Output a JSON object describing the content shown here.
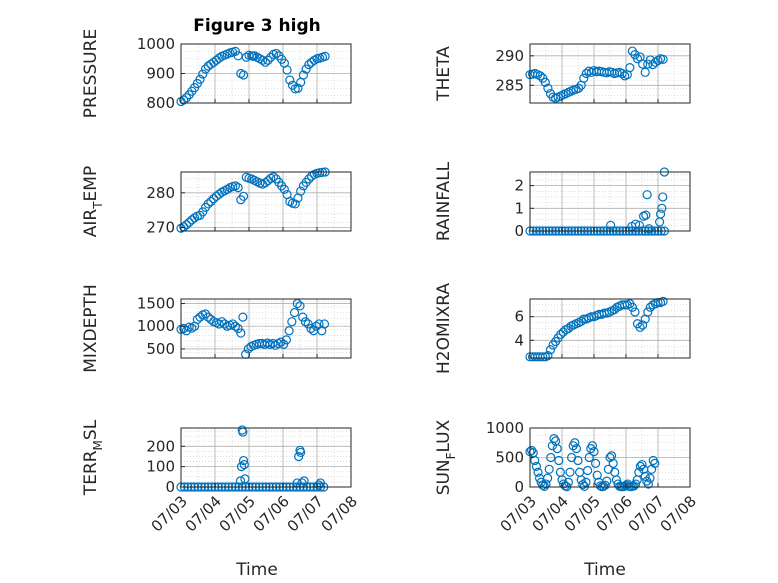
{
  "figure": {
    "title": "Figure 3 high",
    "xlabel": "Time",
    "marker_color": "#0072BD",
    "grid_color": "#c8c8c8",
    "axis_color": "#262626"
  },
  "chart_data": [
    {
      "type": "scatter",
      "ylabel": "PRESSURE",
      "title": "Figure 3 high",
      "xlim": [
        0,
        5
      ],
      "ylim": [
        800,
        1000
      ],
      "yticks": [
        800,
        900,
        1000
      ],
      "xtick_labels": [],
      "x": [
        0.0,
        0.08,
        0.16,
        0.24,
        0.32,
        0.4,
        0.48,
        0.56,
        0.64,
        0.72,
        0.8,
        0.88,
        0.96,
        1.04,
        1.12,
        1.2,
        1.28,
        1.36,
        1.44,
        1.52,
        1.6,
        1.68,
        1.76,
        1.84,
        1.92,
        2.0,
        2.08,
        2.12,
        2.16,
        2.24,
        2.32,
        2.4,
        2.48,
        2.56,
        2.64,
        2.72,
        2.8,
        2.88,
        2.96,
        3.04,
        3.12,
        3.2,
        3.28,
        3.36,
        3.44,
        3.52,
        3.6,
        3.68,
        3.76,
        3.84,
        3.92,
        4.0,
        4.08,
        4.16,
        4.24
      ],
      "y": [
        805,
        810,
        818,
        828,
        840,
        852,
        866,
        880,
        898,
        915,
        925,
        932,
        938,
        945,
        952,
        958,
        962,
        966,
        970,
        972,
        975,
        960,
        900,
        895,
        955,
        962,
        960,
        958,
        960,
        955,
        950,
        945,
        938,
        945,
        955,
        965,
        968,
        960,
        948,
        935,
        912,
        878,
        860,
        848,
        850,
        870,
        895,
        915,
        930,
        938,
        945,
        950,
        952,
        955,
        958
      ]
    },
    {
      "type": "scatter",
      "ylabel": "THETA",
      "xlim": [
        0,
        5
      ],
      "ylim": [
        282,
        292
      ],
      "yticks": [
        285,
        290
      ],
      "xtick_labels": [],
      "x": [
        0.0,
        0.08,
        0.16,
        0.24,
        0.32,
        0.4,
        0.48,
        0.56,
        0.64,
        0.72,
        0.8,
        0.88,
        0.96,
        1.04,
        1.12,
        1.2,
        1.28,
        1.36,
        1.44,
        1.52,
        1.6,
        1.68,
        1.76,
        1.84,
        1.92,
        2.0,
        2.08,
        2.16,
        2.24,
        2.32,
        2.4,
        2.48,
        2.56,
        2.64,
        2.72,
        2.8,
        2.88,
        2.96,
        3.04,
        3.12,
        3.2,
        3.28,
        3.36,
        3.44,
        3.52,
        3.6,
        3.68,
        3.76,
        3.84,
        3.92,
        4.0,
        4.08,
        4.16
      ],
      "y": [
        286.8,
        286.9,
        287.0,
        286.8,
        286.6,
        286.2,
        285.5,
        284.5,
        283.6,
        283.0,
        282.8,
        283.0,
        283.2,
        283.4,
        283.6,
        283.8,
        284.0,
        284.2,
        284.3,
        284.5,
        285.0,
        286.2,
        287.0,
        287.4,
        287.2,
        287.5,
        287.3,
        287.4,
        287.3,
        287.2,
        287.1,
        287.3,
        287.2,
        287.0,
        287.1,
        287.2,
        287.0,
        286.6,
        286.8,
        288.0,
        290.8,
        290.2,
        289.5,
        289.8,
        288.6,
        287.2,
        288.6,
        289.3,
        288.5,
        288.9,
        289.2,
        289.5,
        289.4
      ]
    },
    {
      "type": "scatter",
      "ylabel": "AIR_TEMP",
      "xlim": [
        0,
        5
      ],
      "ylim": [
        269,
        286
      ],
      "yticks": [
        270,
        280
      ],
      "xtick_labels": [],
      "x": [
        0.0,
        0.08,
        0.16,
        0.24,
        0.32,
        0.4,
        0.48,
        0.56,
        0.64,
        0.72,
        0.8,
        0.88,
        0.96,
        1.04,
        1.12,
        1.2,
        1.28,
        1.36,
        1.44,
        1.52,
        1.6,
        1.68,
        1.76,
        1.84,
        1.92,
        2.0,
        2.08,
        2.16,
        2.24,
        2.32,
        2.4,
        2.48,
        2.56,
        2.64,
        2.72,
        2.8,
        2.88,
        2.96,
        3.04,
        3.12,
        3.2,
        3.28,
        3.36,
        3.44,
        3.52,
        3.6,
        3.68,
        3.76,
        3.84,
        3.92,
        4.0,
        4.08,
        4.16,
        4.24
      ],
      "y": [
        269.8,
        270.2,
        270.8,
        271.5,
        272.2,
        272.8,
        273.3,
        273.5,
        274.5,
        275.8,
        276.8,
        277.5,
        278.3,
        279.0,
        279.6,
        280.2,
        280.6,
        281.0,
        281.5,
        281.8,
        282.0,
        281.5,
        278.0,
        279.0,
        284.5,
        284.2,
        284.0,
        283.6,
        283.2,
        282.8,
        282.5,
        282.9,
        283.5,
        284.2,
        284.6,
        284.0,
        283.0,
        282.0,
        281.0,
        279.5,
        277.5,
        277.0,
        276.8,
        278.5,
        280.5,
        282.0,
        283.0,
        284.0,
        284.8,
        285.3,
        285.6,
        285.8,
        285.9,
        286.0
      ]
    },
    {
      "type": "scatter",
      "ylabel": "RAINFALL",
      "xlim": [
        0,
        5
      ],
      "ylim": [
        0,
        2.6
      ],
      "yticks": [
        0,
        1,
        2
      ],
      "xtick_labels": [],
      "x": [
        0.0,
        0.1,
        0.2,
        0.3,
        0.4,
        0.5,
        0.6,
        0.7,
        0.8,
        0.9,
        1.0,
        1.1,
        1.2,
        1.3,
        1.4,
        1.5,
        1.6,
        1.7,
        1.8,
        1.9,
        2.0,
        2.1,
        2.2,
        2.3,
        2.4,
        2.5,
        2.6,
        2.7,
        2.8,
        2.9,
        3.0,
        3.1,
        3.2,
        3.3,
        3.4,
        3.5,
        3.6,
        3.7,
        3.8,
        3.9,
        4.0,
        4.1,
        4.2,
        2.52,
        3.18,
        3.3,
        3.42,
        3.55,
        3.62,
        3.66,
        3.72,
        4.05,
        4.08,
        4.12,
        4.15,
        4.2
      ],
      "y": [
        0,
        0,
        0,
        0,
        0,
        0,
        0,
        0,
        0,
        0,
        0,
        0,
        0,
        0,
        0,
        0,
        0,
        0,
        0,
        0,
        0,
        0,
        0,
        0,
        0,
        0,
        0,
        0,
        0,
        0,
        0,
        0,
        0,
        0,
        0,
        0,
        0,
        0,
        0,
        0,
        0,
        0,
        0,
        0.25,
        0.2,
        0.3,
        0.25,
        0.65,
        0.7,
        1.6,
        0.1,
        0.4,
        0.75,
        1.0,
        1.5,
        2.6
      ]
    },
    {
      "type": "scatter",
      "ylabel": "MIXDEPTH",
      "xlim": [
        0,
        5
      ],
      "ylim": [
        300,
        1600
      ],
      "yticks": [
        500,
        1000,
        1500
      ],
      "xtick_labels": [],
      "x": [
        0.0,
        0.08,
        0.16,
        0.24,
        0.32,
        0.4,
        0.48,
        0.56,
        0.64,
        0.72,
        0.8,
        0.88,
        0.96,
        1.04,
        1.12,
        1.2,
        1.28,
        1.36,
        1.44,
        1.52,
        1.6,
        1.68,
        1.76,
        1.82,
        1.9,
        1.98,
        2.06,
        2.14,
        2.22,
        2.3,
        2.38,
        2.46,
        2.54,
        2.62,
        2.7,
        2.78,
        2.86,
        2.94,
        3.02,
        3.1,
        3.18,
        3.26,
        3.34,
        3.42,
        3.5,
        3.58,
        3.66,
        3.74,
        3.82,
        3.9,
        3.98,
        4.06,
        4.14,
        4.22
      ],
      "y": [
        930,
        950,
        900,
        980,
        960,
        1000,
        1150,
        1200,
        1250,
        1270,
        1200,
        1150,
        1100,
        1080,
        1050,
        1100,
        1050,
        1000,
        1020,
        1050,
        1000,
        950,
        850,
        1200,
        380,
        500,
        550,
        580,
        600,
        620,
        620,
        600,
        630,
        600,
        620,
        580,
        620,
        650,
        600,
        700,
        900,
        1100,
        1300,
        1500,
        1450,
        1200,
        1100,
        1050,
        950,
        900,
        1000,
        1050,
        900,
        1050
      ]
    },
    {
      "type": "scatter",
      "ylabel": "H2OMIXRA",
      "xlim": [
        0,
        5
      ],
      "ylim": [
        2.5,
        7.5
      ],
      "yticks": [
        4,
        6
      ],
      "xtick_labels": [],
      "x": [
        0.0,
        0.08,
        0.16,
        0.24,
        0.32,
        0.4,
        0.48,
        0.56,
        0.64,
        0.72,
        0.8,
        0.88,
        0.96,
        1.04,
        1.12,
        1.2,
        1.28,
        1.36,
        1.44,
        1.52,
        1.6,
        1.68,
        1.76,
        1.84,
        1.92,
        2.0,
        2.08,
        2.16,
        2.24,
        2.32,
        2.4,
        2.48,
        2.56,
        2.64,
        2.72,
        2.8,
        2.88,
        2.96,
        3.04,
        3.12,
        3.2,
        3.28,
        3.36,
        3.44,
        3.52,
        3.6,
        3.68,
        3.76,
        3.84,
        3.92,
        4.0,
        4.08,
        4.16
      ],
      "y": [
        2.6,
        2.6,
        2.6,
        2.6,
        2.6,
        2.6,
        2.6,
        2.7,
        3.2,
        3.6,
        3.9,
        4.2,
        4.5,
        4.7,
        4.9,
        5.0,
        5.2,
        5.3,
        5.4,
        5.5,
        5.6,
        5.8,
        5.8,
        5.9,
        6.0,
        6.0,
        6.1,
        6.2,
        6.2,
        6.3,
        6.3,
        6.4,
        6.5,
        6.6,
        6.8,
        6.9,
        7.0,
        7.0,
        7.0,
        7.1,
        6.8,
        6.4,
        5.4,
        5.1,
        5.3,
        5.8,
        6.4,
        6.8,
        7.0,
        7.1,
        7.2,
        7.2,
        7.3
      ]
    },
    {
      "type": "scatter",
      "ylabel": "TERR_MSL",
      "xlim": [
        0,
        5
      ],
      "ylim": [
        0,
        290
      ],
      "yticks": [
        0,
        100,
        200
      ],
      "xtick_labels": [
        "07/03",
        "07/04",
        "07/05",
        "07/06",
        "07/07",
        "07/08"
      ],
      "x": [
        0.0,
        0.1,
        0.2,
        0.3,
        0.4,
        0.5,
        0.6,
        0.7,
        0.8,
        0.9,
        1.0,
        1.1,
        1.2,
        1.3,
        1.4,
        1.5,
        1.6,
        1.7,
        1.8,
        1.9,
        2.0,
        2.1,
        2.2,
        2.3,
        2.4,
        2.5,
        2.6,
        2.7,
        2.8,
        2.9,
        3.0,
        3.1,
        3.2,
        3.3,
        3.4,
        3.5,
        3.6,
        3.7,
        3.8,
        3.9,
        4.0,
        4.1,
        4.2,
        1.75,
        1.78,
        1.8,
        1.82,
        1.84,
        1.86,
        1.88,
        3.42,
        3.46,
        3.5,
        3.52,
        3.56,
        3.62,
        4.05,
        4.1
      ],
      "y": [
        0,
        0,
        0,
        0,
        0,
        0,
        0,
        0,
        0,
        0,
        0,
        0,
        0,
        0,
        0,
        0,
        0,
        0,
        0,
        0,
        0,
        0,
        0,
        0,
        0,
        0,
        0,
        0,
        0,
        0,
        0,
        0,
        0,
        0,
        0,
        0,
        0,
        0,
        0,
        0,
        0,
        0,
        0,
        30,
        100,
        280,
        270,
        130,
        110,
        40,
        20,
        150,
        180,
        170,
        20,
        30,
        10,
        20
      ]
    },
    {
      "type": "scatter",
      "ylabel": "SUN_FLUX",
      "xlim": [
        0,
        5
      ],
      "ylim": [
        0,
        1000
      ],
      "yticks": [
        0,
        500,
        1000
      ],
      "xtick_labels": [
        "07/03",
        "07/04",
        "07/05",
        "07/06",
        "07/07",
        "07/08"
      ],
      "x": [
        0.0,
        0.05,
        0.1,
        0.15,
        0.2,
        0.25,
        0.3,
        0.35,
        0.4,
        0.45,
        0.5,
        0.55,
        0.6,
        0.65,
        0.7,
        0.75,
        0.8,
        0.85,
        0.9,
        0.95,
        1.0,
        1.05,
        1.1,
        1.15,
        1.2,
        1.25,
        1.3,
        1.35,
        1.4,
        1.45,
        1.5,
        1.55,
        1.6,
        1.65,
        1.7,
        1.75,
        1.8,
        1.85,
        1.9,
        1.95,
        2.0,
        2.05,
        2.1,
        2.15,
        2.2,
        2.25,
        2.3,
        2.35,
        2.4,
        2.45,
        2.5,
        2.55,
        2.6,
        2.65,
        2.7,
        2.75,
        2.8,
        2.85,
        2.9,
        2.95,
        3.0,
        3.05,
        3.1,
        3.15,
        3.2,
        3.25,
        3.3,
        3.35,
        3.4,
        3.45,
        3.5,
        3.55,
        3.6,
        3.65,
        3.7,
        3.75,
        3.8,
        3.85,
        3.9
      ],
      "y": [
        600,
        620,
        580,
        450,
        350,
        250,
        150,
        80,
        30,
        10,
        50,
        150,
        300,
        500,
        700,
        820,
        780,
        650,
        450,
        250,
        120,
        50,
        20,
        5,
        80,
        250,
        500,
        700,
        750,
        650,
        450,
        250,
        120,
        40,
        10,
        80,
        280,
        500,
        650,
        700,
        600,
        400,
        200,
        80,
        20,
        5,
        10,
        30,
        100,
        300,
        500,
        530,
        400,
        250,
        120,
        50,
        10,
        5,
        5,
        10,
        30,
        50,
        10,
        5,
        10,
        20,
        50,
        120,
        250,
        350,
        380,
        300,
        180,
        100,
        50,
        150,
        300,
        450,
        400
      ]
    }
  ]
}
